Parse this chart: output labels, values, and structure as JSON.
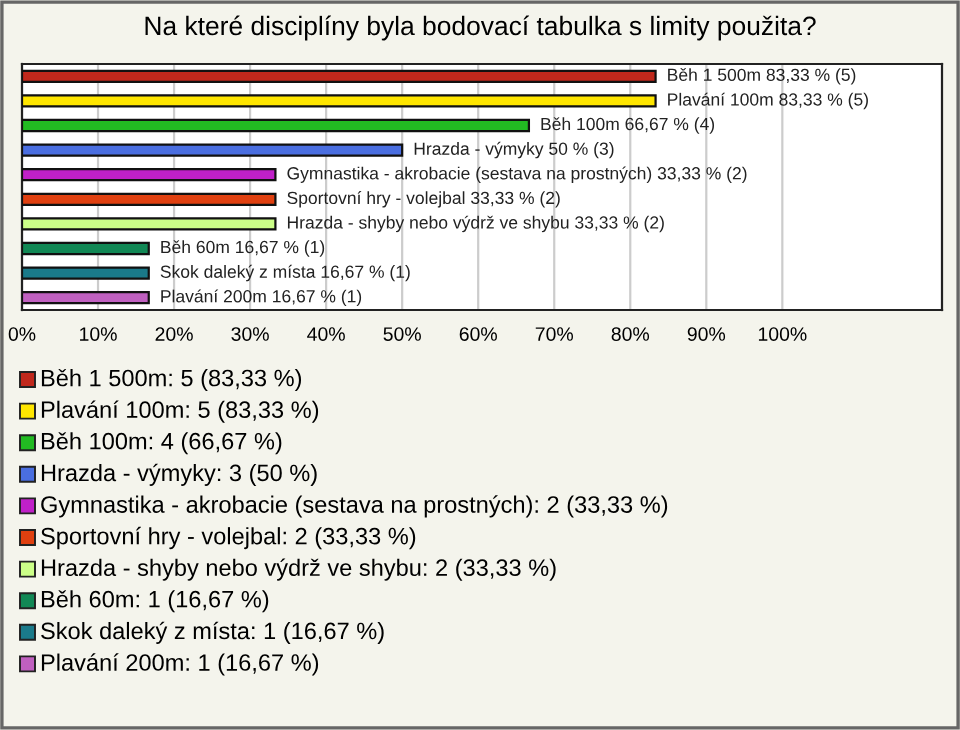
{
  "chart_data": {
    "type": "bar",
    "orientation": "horizontal",
    "title": "Na které disciplíny byla bodovací tabulka s limity použita?",
    "categories": [
      null,
      null,
      null,
      null,
      null,
      null,
      null,
      null,
      null,
      null
    ],
    "values": [
      83.33,
      83.33,
      66.67,
      50,
      33.33,
      33.33,
      33.33,
      16.67,
      16.67,
      16.67
    ],
    "colors": [
      "#c0281c",
      "#ffe600",
      "#22bb22",
      "#4a6ee0",
      "#c020c8",
      "#e04010",
      "#ccff88",
      "#118855",
      "#1a7a8a",
      "#c060c0"
    ],
    "value_labels": [
      "Běh 1 500m 83,33 % (5)",
      "Plavání 100m 83,33 % (5)",
      "Běh 100m 66,67 % (4)",
      "Hrazda - výmyky 50 % (3)",
      "Gymnastika - akrobacie (sestava na prostných) 33,33 % (2)",
      "Sportovní hry - volejbal 33,33 % (2)",
      "Hrazda - shyby nebo výdrž ve shybu 33,33 % (2)",
      "Běh 60m 16,67 % (1)",
      "Skok daleký z místa 16,67 % (1)",
      "Plavání 200m 16,67 % (1)"
    ],
    "annotations": [
      "Běh 1 500m: 5 (83,33 %)",
      "Plavání 100m: 5 (83,33 %)",
      "Běh 100m: 4 (66,67 %)",
      "Hrazda - výmyky: 3 (50 %)",
      "Gymnastika - akrobacie (sestava na prostných): 2 (33,33 %)",
      "Sportovní hry - volejbal: 2 (33,33 %)",
      "Hrazda - shyby nebo výdrž ve shybu: 2 (33,33 %)",
      "Běh 60m: 1 (16,67 %)",
      "Skok daleký z místa: 1 (16,67 %)",
      "Plavání 200m: 1 (16,67 %)"
    ],
    "xlim": [
      0,
      121
    ],
    "xticks": [
      {
        "value": 0,
        "label": "0%"
      },
      {
        "value": 10,
        "label": "10%"
      },
      {
        "value": 20,
        "label": "20%"
      },
      {
        "value": 30,
        "label": "30%"
      },
      {
        "value": 40,
        "label": "40%"
      },
      {
        "value": 50,
        "label": "50%"
      },
      {
        "value": 60,
        "label": "60%"
      },
      {
        "value": 70,
        "label": "70%"
      },
      {
        "value": 80,
        "label": "80%"
      },
      {
        "value": 90,
        "label": "90%"
      },
      {
        "value": 100,
        "label": "100%"
      }
    ],
    "grid": "x",
    "tick_labels": "x"
  }
}
